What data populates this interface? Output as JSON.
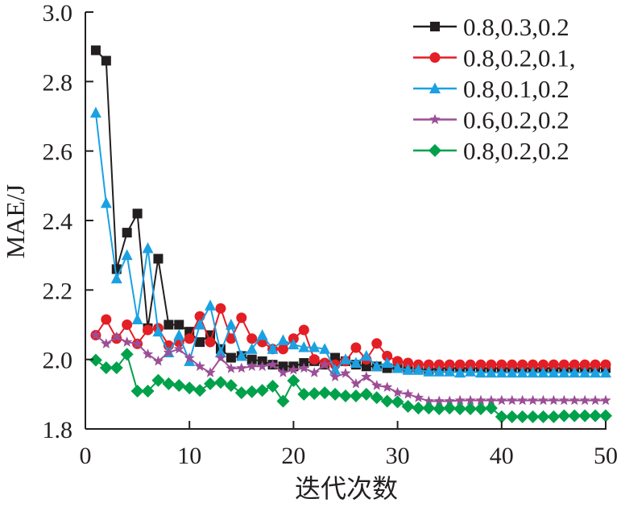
{
  "chart_data": {
    "type": "line",
    "title": "",
    "xlabel": "迭代次数",
    "ylabel": "MAE/J",
    "xlim": [
      0,
      50
    ],
    "ylim": [
      1.8,
      3.0
    ],
    "xticks": [
      "0",
      "10",
      "20",
      "30",
      "40",
      "50"
    ],
    "yticks": [
      "1.8",
      "2.0",
      "2.2",
      "2.4",
      "2.6",
      "2.8",
      "3.0"
    ],
    "grid": false,
    "legend_position": "top-right",
    "x": [
      1,
      2,
      3,
      4,
      5,
      6,
      7,
      8,
      9,
      10,
      11,
      12,
      13,
      14,
      15,
      16,
      17,
      18,
      19,
      20,
      21,
      22,
      23,
      24,
      25,
      26,
      27,
      28,
      29,
      30,
      31,
      32,
      33,
      34,
      35,
      36,
      37,
      38,
      39,
      40,
      41,
      42,
      43,
      44,
      45,
      46,
      47,
      48,
      49,
      50
    ],
    "series": [
      {
        "name": "0.8,0.3,0.2",
        "color": "#231f20",
        "marker": "square",
        "values": [
          2.89,
          2.86,
          2.26,
          2.365,
          2.42,
          2.09,
          2.29,
          2.1,
          2.1,
          2.08,
          2.05,
          2.07,
          2.03,
          2.005,
          2.01,
          2.0,
          1.995,
          1.985,
          1.98,
          1.98,
          1.99,
          1.995,
          1.985,
          2.005,
          1.995,
          1.985,
          1.98,
          1.98,
          1.975,
          1.975,
          1.97,
          1.97,
          1.97,
          1.975,
          1.975,
          1.975,
          1.975,
          1.975,
          1.975,
          1.975,
          1.975,
          1.975,
          1.975,
          1.975,
          1.975,
          1.975,
          1.975,
          1.975,
          1.975,
          1.975
        ]
      },
      {
        "name": "0.8,0.2,0.1,",
        "color": "#e31e24",
        "marker": "circle",
        "values": [
          2.07,
          2.115,
          2.06,
          2.1,
          2.045,
          2.085,
          2.09,
          2.04,
          2.05,
          2.06,
          2.124,
          2.05,
          2.147,
          2.06,
          2.12,
          2.06,
          2.05,
          2.03,
          2.03,
          2.06,
          2.085,
          2.0,
          1.99,
          1.985,
          1.995,
          2.034,
          2.0,
          2.046,
          2.01,
          1.995,
          1.99,
          1.985,
          1.985,
          1.985,
          1.985,
          1.985,
          1.985,
          1.985,
          1.985,
          1.985,
          1.985,
          1.985,
          1.985,
          1.985,
          1.985,
          1.985,
          1.985,
          1.985,
          1.985,
          1.985
        ]
      },
      {
        "name": "0.8,0.1,0.2",
        "color": "#1ba1e2",
        "marker": "triangle",
        "values": [
          2.71,
          2.45,
          2.233,
          2.3,
          2.115,
          2.32,
          2.08,
          2.02,
          2.07,
          1.995,
          2.1,
          2.155,
          2.02,
          2.1,
          2.01,
          2.03,
          2.07,
          2.03,
          2.055,
          2.043,
          2.035,
          2.035,
          2.03,
          1.97,
          2.0,
          1.99,
          2.01,
          1.98,
          1.99,
          1.975,
          1.97,
          1.97,
          1.965,
          1.965,
          1.965,
          1.962,
          1.965,
          1.962,
          1.962,
          1.962,
          1.962,
          1.962,
          1.962,
          1.962,
          1.962,
          1.962,
          1.962,
          1.962,
          1.962,
          1.962
        ]
      },
      {
        "name": "0.6,0.2,0.2",
        "color": "#9b4f96",
        "marker": "star",
        "values": [
          2.07,
          2.045,
          2.065,
          2.05,
          2.045,
          2.015,
          1.995,
          2.02,
          2.03,
          2.004,
          1.98,
          1.962,
          2.004,
          1.974,
          1.975,
          1.98,
          1.98,
          1.985,
          1.962,
          1.97,
          1.975,
          1.962,
          1.985,
          1.95,
          1.96,
          1.93,
          1.95,
          1.925,
          1.92,
          1.905,
          1.9,
          1.89,
          1.88,
          1.88,
          1.88,
          1.882,
          1.882,
          1.882,
          1.882,
          1.882,
          1.882,
          1.882,
          1.882,
          1.882,
          1.882,
          1.882,
          1.882,
          1.882,
          1.882,
          1.882
        ]
      },
      {
        "name": "0.8,0.2,0.2",
        "color": "#00a14b",
        "marker": "diamond",
        "values": [
          1.998,
          1.976,
          1.976,
          2.015,
          1.909,
          1.909,
          1.94,
          1.93,
          1.925,
          1.918,
          1.911,
          1.93,
          1.934,
          1.925,
          1.904,
          1.907,
          1.911,
          1.923,
          1.88,
          1.939,
          1.9,
          1.902,
          1.904,
          1.9,
          1.895,
          1.895,
          1.9,
          1.89,
          1.88,
          1.878,
          1.865,
          1.86,
          1.86,
          1.858,
          1.86,
          1.858,
          1.858,
          1.858,
          1.86,
          1.835,
          1.835,
          1.835,
          1.835,
          1.835,
          1.835,
          1.838,
          1.838,
          1.838,
          1.838,
          1.838
        ]
      }
    ]
  }
}
